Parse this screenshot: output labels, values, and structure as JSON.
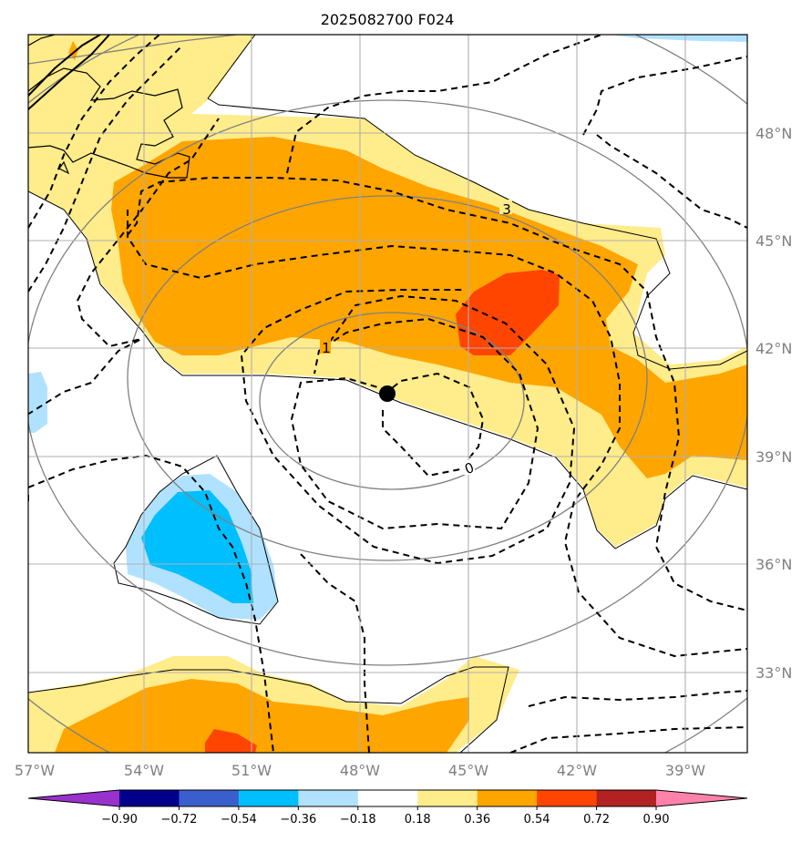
{
  "title": "2025082700 F024",
  "map": {
    "longitude_labels": [
      "57°W",
      "54°W",
      "51°W",
      "48°W",
      "45°W",
      "42°W",
      "39°W"
    ],
    "latitude_labels": [
      "48°N",
      "45°N",
      "42°N",
      "39°N",
      "36°N",
      "33°N"
    ],
    "contour_labels": [
      "3",
      "1",
      "0"
    ],
    "center_marker": {
      "lon_label": "~47.3°W",
      "lat_label": "~40.7°N"
    }
  },
  "colorbar": {
    "tick_labels": [
      "−0.90",
      "−0.72",
      "−0.54",
      "−0.36",
      "−0.18",
      "0.18",
      "0.36",
      "0.54",
      "0.72",
      "0.90"
    ],
    "colors": [
      "#9932cc",
      "#00008b",
      "#3a5fcd",
      "#00bfff",
      "#b0e2ff",
      "#ffffff",
      "#ffec8b",
      "#ffa500",
      "#ff4500",
      "#b22222",
      "#ff82ab"
    ]
  },
  "colors": {
    "yellow": "#ffec8b",
    "orange": "#ffa500",
    "red": "#ff4500",
    "lightblue": "#b0e2ff",
    "blue": "#00bfff",
    "grid": "#b0b0b0",
    "gray_contour": "#808080"
  }
}
